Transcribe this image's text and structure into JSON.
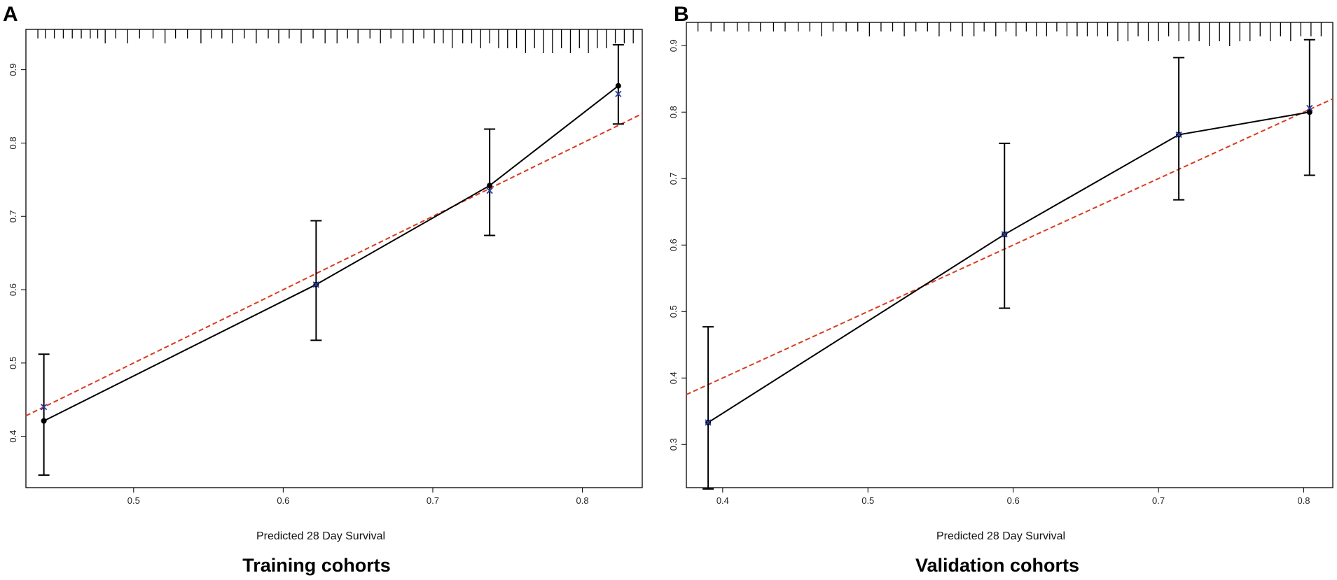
{
  "colors": {
    "observed": "#000000",
    "ideal": "#d93a1e",
    "corrected": "#2b3fa0"
  },
  "chart_data": [
    {
      "type": "line",
      "panel": "A",
      "title": "Training cohorts",
      "xlabel": "Predicted  28 Day Survival",
      "ylabel": "",
      "xlim": [
        0.428,
        0.84
      ],
      "ylim": [
        0.33,
        0.955
      ],
      "x_ticks": [
        "0.5",
        "0.6",
        "0.7",
        "0.8"
      ],
      "y_ticks": [
        "0.4",
        "0.5",
        "0.6",
        "0.7",
        "0.8",
        "0.9"
      ],
      "grid": false,
      "observed": {
        "x": [
          0.44,
          0.622,
          0.738,
          0.824
        ],
        "y": [
          0.421,
          0.607,
          0.742,
          0.878
        ],
        "lower": [
          0.347,
          0.531,
          0.674,
          0.826
        ],
        "upper": [
          0.512,
          0.694,
          0.819,
          0.934
        ]
      },
      "corrected": {
        "x": [
          0.44,
          0.622,
          0.738,
          0.824
        ],
        "y": [
          0.44,
          0.607,
          0.735,
          0.867
        ]
      },
      "ideal": {
        "x": [
          0.428,
          0.84
        ],
        "y": [
          0.428,
          0.84
        ]
      },
      "rug": [
        {
          "x": 0.436,
          "h": 1
        },
        {
          "x": 0.441,
          "h": 1
        },
        {
          "x": 0.447,
          "h": 1
        },
        {
          "x": 0.453,
          "h": 1
        },
        {
          "x": 0.459,
          "h": 1
        },
        {
          "x": 0.465,
          "h": 1
        },
        {
          "x": 0.471,
          "h": 1
        },
        {
          "x": 0.476,
          "h": 1
        },
        {
          "x": 0.481,
          "h": 2
        },
        {
          "x": 0.488,
          "h": 1
        },
        {
          "x": 0.496,
          "h": 2
        },
        {
          "x": 0.504,
          "h": 1
        },
        {
          "x": 0.513,
          "h": 1
        },
        {
          "x": 0.521,
          "h": 2
        },
        {
          "x": 0.528,
          "h": 1
        },
        {
          "x": 0.536,
          "h": 1
        },
        {
          "x": 0.545,
          "h": 2
        },
        {
          "x": 0.552,
          "h": 1
        },
        {
          "x": 0.559,
          "h": 1
        },
        {
          "x": 0.566,
          "h": 2
        },
        {
          "x": 0.574,
          "h": 1
        },
        {
          "x": 0.582,
          "h": 2
        },
        {
          "x": 0.59,
          "h": 1
        },
        {
          "x": 0.597,
          "h": 2
        },
        {
          "x": 0.604,
          "h": 1
        },
        {
          "x": 0.612,
          "h": 2
        },
        {
          "x": 0.62,
          "h": 1
        },
        {
          "x": 0.628,
          "h": 2
        },
        {
          "x": 0.636,
          "h": 2
        },
        {
          "x": 0.643,
          "h": 1
        },
        {
          "x": 0.65,
          "h": 2
        },
        {
          "x": 0.658,
          "h": 1
        },
        {
          "x": 0.665,
          "h": 2
        },
        {
          "x": 0.672,
          "h": 1
        },
        {
          "x": 0.68,
          "h": 2
        },
        {
          "x": 0.687,
          "h": 2
        },
        {
          "x": 0.694,
          "h": 1
        },
        {
          "x": 0.701,
          "h": 2
        },
        {
          "x": 0.707,
          "h": 2
        },
        {
          "x": 0.713,
          "h": 3
        },
        {
          "x": 0.72,
          "h": 2
        },
        {
          "x": 0.726,
          "h": 2
        },
        {
          "x": 0.732,
          "h": 3
        },
        {
          "x": 0.738,
          "h": 2
        },
        {
          "x": 0.744,
          "h": 3
        },
        {
          "x": 0.75,
          "h": 3
        },
        {
          "x": 0.756,
          "h": 3
        },
        {
          "x": 0.762,
          "h": 4
        },
        {
          "x": 0.768,
          "h": 3
        },
        {
          "x": 0.774,
          "h": 4
        },
        {
          "x": 0.78,
          "h": 4
        },
        {
          "x": 0.786,
          "h": 3
        },
        {
          "x": 0.792,
          "h": 4
        },
        {
          "x": 0.798,
          "h": 3
        },
        {
          "x": 0.804,
          "h": 4
        },
        {
          "x": 0.81,
          "h": 3
        },
        {
          "x": 0.816,
          "h": 3
        },
        {
          "x": 0.822,
          "h": 2
        },
        {
          "x": 0.828,
          "h": 2
        },
        {
          "x": 0.834,
          "h": 2
        }
      ]
    },
    {
      "type": "line",
      "panel": "B",
      "title": "Validation cohorts",
      "xlabel": "Predicted  28 Day Survival",
      "ylabel": "",
      "xlim": [
        0.375,
        0.82
      ],
      "ylim": [
        0.235,
        0.935
      ],
      "x_ticks": [
        "0.4",
        "0.5",
        "0.6",
        "0.7",
        "0.8"
      ],
      "y_ticks": [
        "0.3",
        "0.4",
        "0.5",
        "0.6",
        "0.7",
        "0.8",
        "0.9"
      ],
      "grid": false,
      "observed": {
        "x": [
          0.39,
          0.594,
          0.714,
          0.804
        ],
        "y": [
          0.333,
          0.616,
          0.766,
          0.8
        ],
        "lower": [
          0.233,
          0.505,
          0.668,
          0.705
        ],
        "upper": [
          0.477,
          0.753,
          0.882,
          0.909
        ]
      },
      "corrected": {
        "x": [
          0.39,
          0.594,
          0.714,
          0.804
        ],
        "y": [
          0.333,
          0.616,
          0.766,
          0.806
        ]
      },
      "ideal": {
        "x": [
          0.375,
          0.82
        ],
        "y": [
          0.375,
          0.82
        ]
      },
      "rug": [
        {
          "x": 0.383,
          "h": 1
        },
        {
          "x": 0.392,
          "h": 1
        },
        {
          "x": 0.401,
          "h": 1
        },
        {
          "x": 0.41,
          "h": 1
        },
        {
          "x": 0.418,
          "h": 1
        },
        {
          "x": 0.426,
          "h": 1
        },
        {
          "x": 0.435,
          "h": 1
        },
        {
          "x": 0.443,
          "h": 1
        },
        {
          "x": 0.452,
          "h": 1
        },
        {
          "x": 0.46,
          "h": 1
        },
        {
          "x": 0.468,
          "h": 2
        },
        {
          "x": 0.476,
          "h": 1
        },
        {
          "x": 0.485,
          "h": 1
        },
        {
          "x": 0.493,
          "h": 1
        },
        {
          "x": 0.501,
          "h": 2
        },
        {
          "x": 0.509,
          "h": 1
        },
        {
          "x": 0.517,
          "h": 1
        },
        {
          "x": 0.525,
          "h": 2
        },
        {
          "x": 0.533,
          "h": 1
        },
        {
          "x": 0.541,
          "h": 1
        },
        {
          "x": 0.549,
          "h": 2
        },
        {
          "x": 0.557,
          "h": 1
        },
        {
          "x": 0.565,
          "h": 2
        },
        {
          "x": 0.573,
          "h": 2
        },
        {
          "x": 0.58,
          "h": 1
        },
        {
          "x": 0.588,
          "h": 2
        },
        {
          "x": 0.595,
          "h": 1
        },
        {
          "x": 0.602,
          "h": 2
        },
        {
          "x": 0.609,
          "h": 1
        },
        {
          "x": 0.616,
          "h": 2
        },
        {
          "x": 0.623,
          "h": 2
        },
        {
          "x": 0.63,
          "h": 1
        },
        {
          "x": 0.637,
          "h": 2
        },
        {
          "x": 0.644,
          "h": 2
        },
        {
          "x": 0.651,
          "h": 2
        },
        {
          "x": 0.658,
          "h": 2
        },
        {
          "x": 0.665,
          "h": 2
        },
        {
          "x": 0.672,
          "h": 3
        },
        {
          "x": 0.679,
          "h": 3
        },
        {
          "x": 0.686,
          "h": 2
        },
        {
          "x": 0.693,
          "h": 3
        },
        {
          "x": 0.7,
          "h": 3
        },
        {
          "x": 0.707,
          "h": 2
        },
        {
          "x": 0.714,
          "h": 3
        },
        {
          "x": 0.721,
          "h": 3
        },
        {
          "x": 0.728,
          "h": 3
        },
        {
          "x": 0.735,
          "h": 4
        },
        {
          "x": 0.742,
          "h": 3
        },
        {
          "x": 0.749,
          "h": 4
        },
        {
          "x": 0.756,
          "h": 3
        },
        {
          "x": 0.763,
          "h": 3
        },
        {
          "x": 0.77,
          "h": 2
        },
        {
          "x": 0.777,
          "h": 3
        },
        {
          "x": 0.784,
          "h": 2
        },
        {
          "x": 0.791,
          "h": 3
        },
        {
          "x": 0.798,
          "h": 2
        },
        {
          "x": 0.805,
          "h": 2
        },
        {
          "x": 0.812,
          "h": 2
        }
      ]
    }
  ]
}
